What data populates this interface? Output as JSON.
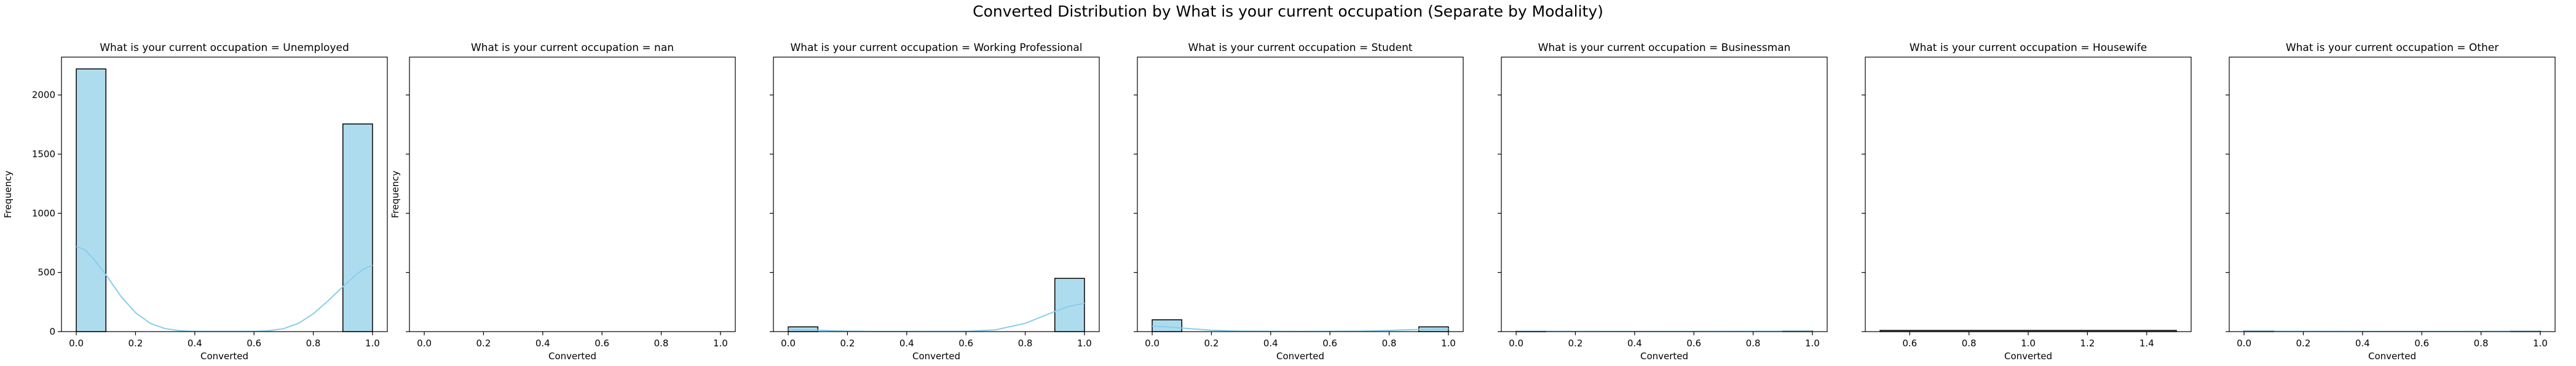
{
  "figure": {
    "title": "Converted Distribution by What is your current occupation (Separate by Modality)"
  },
  "style": {
    "bar_fill": "#aedcef",
    "bar_edge": "#000000",
    "kde_color": "#87ceeb"
  },
  "chart_data": [
    {
      "type": "bar",
      "title": "What is your current occupation = Unemployed",
      "xlabel": "Converted",
      "ylabel": "Frequency",
      "xlim": [
        -0.05,
        1.05
      ],
      "ylim": [
        0,
        2320
      ],
      "xticks": [
        0.0,
        0.2,
        0.4,
        0.6,
        0.8,
        1.0
      ],
      "yticks": [
        0,
        500,
        1000,
        1500,
        2000
      ],
      "bins": [
        [
          0.0,
          0.1,
          2220
        ],
        [
          0.9,
          1.0,
          1755
        ]
      ],
      "kde": [
        [
          0.0,
          720
        ],
        [
          0.03,
          690
        ],
        [
          0.06,
          610
        ],
        [
          0.1,
          480
        ],
        [
          0.15,
          300
        ],
        [
          0.2,
          160
        ],
        [
          0.25,
          70
        ],
        [
          0.3,
          25
        ],
        [
          0.35,
          8
        ],
        [
          0.4,
          2
        ],
        [
          0.6,
          2
        ],
        [
          0.65,
          8
        ],
        [
          0.7,
          25
        ],
        [
          0.75,
          70
        ],
        [
          0.8,
          150
        ],
        [
          0.85,
          260
        ],
        [
          0.9,
          380
        ],
        [
          0.94,
          470
        ],
        [
          0.97,
          530
        ],
        [
          1.0,
          560
        ]
      ]
    },
    {
      "type": "bar",
      "title": "What is your current occupation = nan",
      "xlabel": "Converted",
      "ylabel": "Frequency",
      "xlim": [
        -0.05,
        1.05
      ],
      "ylim": [
        0,
        2320
      ],
      "xticks": [
        0.0,
        0.2,
        0.4,
        0.6,
        0.8,
        1.0
      ],
      "bins": [],
      "kde": []
    },
    {
      "type": "bar",
      "title": "What is your current occupation = Working Professional",
      "xlabel": "Converted",
      "xlim": [
        -0.05,
        1.05
      ],
      "ylim": [
        0,
        2320
      ],
      "xticks": [
        0.0,
        0.2,
        0.4,
        0.6,
        0.8,
        1.0
      ],
      "bins": [
        [
          0.0,
          0.1,
          40
        ],
        [
          0.9,
          1.0,
          450
        ]
      ],
      "kde": [
        [
          0.0,
          18
        ],
        [
          0.1,
          12
        ],
        [
          0.2,
          4
        ],
        [
          0.3,
          1
        ],
        [
          0.6,
          2
        ],
        [
          0.7,
          15
        ],
        [
          0.8,
          70
        ],
        [
          0.9,
          170
        ],
        [
          0.95,
          215
        ],
        [
          1.0,
          240
        ]
      ]
    },
    {
      "type": "bar",
      "title": "What is your current occupation = Student",
      "xlabel": "Converted",
      "xlim": [
        -0.05,
        1.05
      ],
      "ylim": [
        0,
        2320
      ],
      "xticks": [
        0.0,
        0.2,
        0.4,
        0.6,
        0.8,
        1.0
      ],
      "bins": [
        [
          0.0,
          0.1,
          100
        ],
        [
          0.9,
          1.0,
          40
        ]
      ],
      "kde": [
        [
          0.0,
          45
        ],
        [
          0.05,
          40
        ],
        [
          0.1,
          30
        ],
        [
          0.2,
          12
        ],
        [
          0.3,
          4
        ],
        [
          0.5,
          1
        ],
        [
          0.7,
          4
        ],
        [
          0.8,
          10
        ],
        [
          0.9,
          18
        ],
        [
          1.0,
          22
        ]
      ]
    },
    {
      "type": "bar",
      "title": "What is your current occupation = Businessman",
      "xlabel": "Converted",
      "xlim": [
        -0.05,
        1.05
      ],
      "ylim": [
        0,
        2320
      ],
      "xticks": [
        0.0,
        0.2,
        0.4,
        0.6,
        0.8,
        1.0
      ],
      "bins": [
        [
          0.0,
          0.1,
          3
        ],
        [
          0.9,
          1.0,
          5
        ]
      ],
      "kde": [
        [
          0.0,
          2
        ],
        [
          0.5,
          1
        ],
        [
          1.0,
          3
        ]
      ]
    },
    {
      "type": "bar",
      "title": "What is your current occupation = Housewife",
      "xlabel": "Converted",
      "xlim": [
        0.45,
        1.55
      ],
      "ylim": [
        0,
        2320
      ],
      "xticks": [
        0.6,
        0.8,
        1.0,
        1.2,
        1.4
      ],
      "bins": [
        [
          0.5,
          1.5,
          10
        ]
      ],
      "kde": []
    },
    {
      "type": "bar",
      "title": "What is your current occupation = Other",
      "xlabel": "Converted",
      "xlim": [
        -0.05,
        1.05
      ],
      "ylim": [
        0,
        2320
      ],
      "xticks": [
        0.0,
        0.2,
        0.4,
        0.6,
        0.8,
        1.0
      ],
      "bins": [
        [
          0.0,
          0.1,
          5
        ],
        [
          0.9,
          1.0,
          4
        ]
      ],
      "kde": [
        [
          0.0,
          3
        ],
        [
          0.5,
          1
        ],
        [
          1.0,
          2
        ]
      ]
    }
  ]
}
